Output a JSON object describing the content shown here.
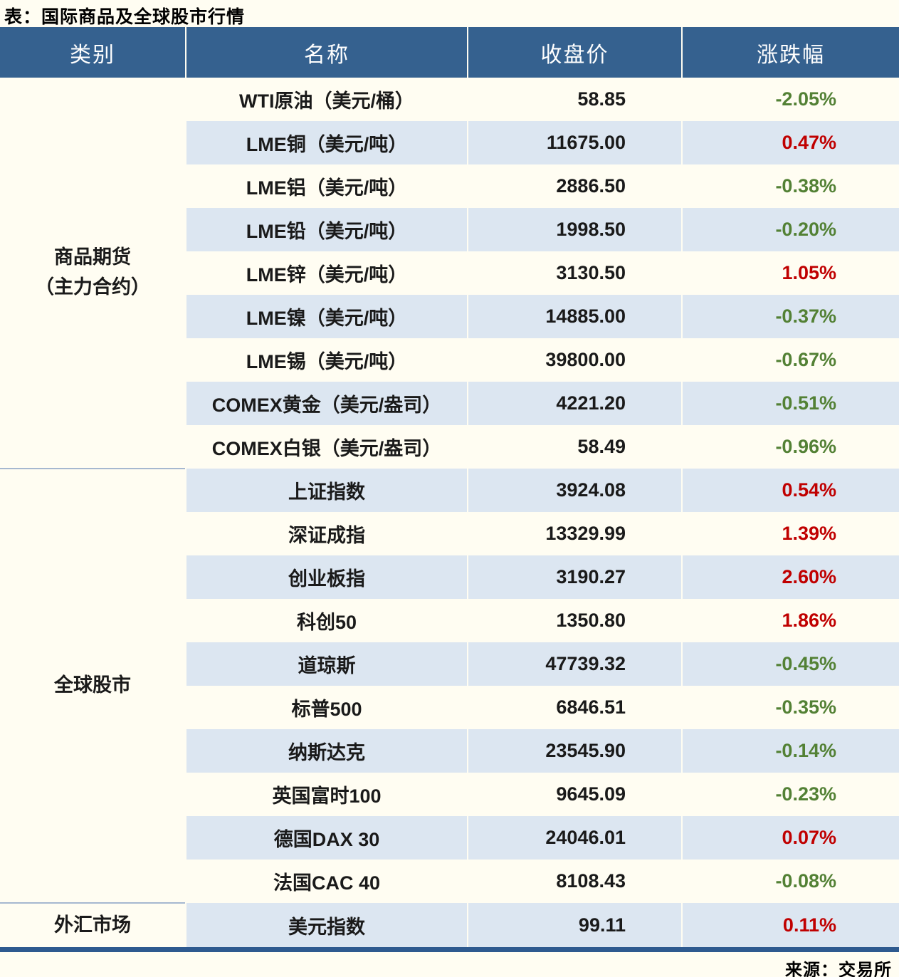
{
  "title": "表：国际商品及全球股市行情",
  "source": "来源：交易所",
  "colors": {
    "up": "#c00000",
    "down": "#538135",
    "header_bg": "#35618f",
    "alt_row_bg": "#dce6f1",
    "page_bg": "#fffdf2",
    "section_divider": "#a6b8d0",
    "bottom_border": "#2e5a8f"
  },
  "table": {
    "columns": [
      "类别",
      "名称",
      "收盘价",
      "涨跌幅"
    ],
    "sections": [
      {
        "category": "商品期货\n（主力合约）",
        "rows": [
          {
            "name": "WTI原油（美元/桶）",
            "close": "58.85",
            "change": "-2.05%",
            "dir": "down"
          },
          {
            "name": "LME铜（美元/吨）",
            "close": "11675.00",
            "change": "0.47%",
            "dir": "up"
          },
          {
            "name": "LME铝（美元/吨）",
            "close": "2886.50",
            "change": "-0.38%",
            "dir": "down"
          },
          {
            "name": "LME铅（美元/吨）",
            "close": "1998.50",
            "change": "-0.20%",
            "dir": "down"
          },
          {
            "name": "LME锌（美元/吨）",
            "close": "3130.50",
            "change": "1.05%",
            "dir": "up"
          },
          {
            "name": "LME镍（美元/吨）",
            "close": "14885.00",
            "change": "-0.37%",
            "dir": "down"
          },
          {
            "name": "LME锡（美元/吨）",
            "close": "39800.00",
            "change": "-0.67%",
            "dir": "down"
          },
          {
            "name": "COMEX黄金（美元/盎司）",
            "close": "4221.20",
            "change": "-0.51%",
            "dir": "down"
          },
          {
            "name": "COMEX白银（美元/盎司）",
            "close": "58.49",
            "change": "-0.96%",
            "dir": "down"
          }
        ]
      },
      {
        "category": "全球股市",
        "rows": [
          {
            "name": "上证指数",
            "close": "3924.08",
            "change": "0.54%",
            "dir": "up"
          },
          {
            "name": "深证成指",
            "close": "13329.99",
            "change": "1.39%",
            "dir": "up"
          },
          {
            "name": "创业板指",
            "close": "3190.27",
            "change": "2.60%",
            "dir": "up"
          },
          {
            "name": "科创50",
            "close": "1350.80",
            "change": "1.86%",
            "dir": "up"
          },
          {
            "name": "道琼斯",
            "close": "47739.32",
            "change": "-0.45%",
            "dir": "down"
          },
          {
            "name": "标普500",
            "close": "6846.51",
            "change": "-0.35%",
            "dir": "down"
          },
          {
            "name": "纳斯达克",
            "close": "23545.90",
            "change": "-0.14%",
            "dir": "down"
          },
          {
            "name": "英国富时100",
            "close": "9645.09",
            "change": "-0.23%",
            "dir": "down"
          },
          {
            "name": "德国DAX 30",
            "close": "24046.01",
            "change": "0.07%",
            "dir": "up"
          },
          {
            "name": "法国CAC 40",
            "close": "8108.43",
            "change": "-0.08%",
            "dir": "down"
          }
        ]
      },
      {
        "category": "外汇市场",
        "rows": [
          {
            "name": "美元指数",
            "close": "99.11",
            "change": "0.11%",
            "dir": "up"
          }
        ]
      }
    ]
  },
  "chart_data": {
    "type": "table",
    "title": "表：国际商品及全球股市行情",
    "columns": [
      "类别",
      "名称",
      "收盘价",
      "涨跌幅"
    ],
    "rows": [
      [
        "商品期货（主力合约）",
        "WTI原油（美元/桶）",
        58.85,
        "-2.05%"
      ],
      [
        "商品期货（主力合约）",
        "LME铜（美元/吨）",
        11675.0,
        "0.47%"
      ],
      [
        "商品期货（主力合约）",
        "LME铝（美元/吨）",
        2886.5,
        "-0.38%"
      ],
      [
        "商品期货（主力合约）",
        "LME铅（美元/吨）",
        1998.5,
        "-0.20%"
      ],
      [
        "商品期货（主力合约）",
        "LME锌（美元/吨）",
        3130.5,
        "1.05%"
      ],
      [
        "商品期货（主力合约）",
        "LME镍（美元/吨）",
        14885.0,
        "-0.37%"
      ],
      [
        "商品期货（主力合约）",
        "LME锡（美元/吨）",
        39800.0,
        "-0.67%"
      ],
      [
        "商品期货（主力合约）",
        "COMEX黄金（美元/盎司）",
        4221.2,
        "-0.51%"
      ],
      [
        "商品期货（主力合约）",
        "COMEX白银（美元/盎司）",
        58.49,
        "-0.96%"
      ],
      [
        "全球股市",
        "上证指数",
        3924.08,
        "0.54%"
      ],
      [
        "全球股市",
        "深证成指",
        13329.99,
        "1.39%"
      ],
      [
        "全球股市",
        "创业板指",
        3190.27,
        "2.60%"
      ],
      [
        "全球股市",
        "科创50",
        1350.8,
        "1.86%"
      ],
      [
        "全球股市",
        "道琼斯",
        47739.32,
        "-0.45%"
      ],
      [
        "全球股市",
        "标普500",
        6846.51,
        "-0.35%"
      ],
      [
        "全球股市",
        "纳斯达克",
        23545.9,
        "-0.14%"
      ],
      [
        "全球股市",
        "英国富时100",
        9645.09,
        "-0.23%"
      ],
      [
        "全球股市",
        "德国DAX 30",
        24046.01,
        "0.07%"
      ],
      [
        "全球股市",
        "法国CAC 40",
        8108.43,
        "-0.08%"
      ],
      [
        "外汇市场",
        "美元指数",
        99.11,
        "0.11%"
      ]
    ],
    "notes": "涨跌幅颜色：红色=上涨(#c00000)，绿色=下跌(#538135)；数据来源：交易所"
  }
}
